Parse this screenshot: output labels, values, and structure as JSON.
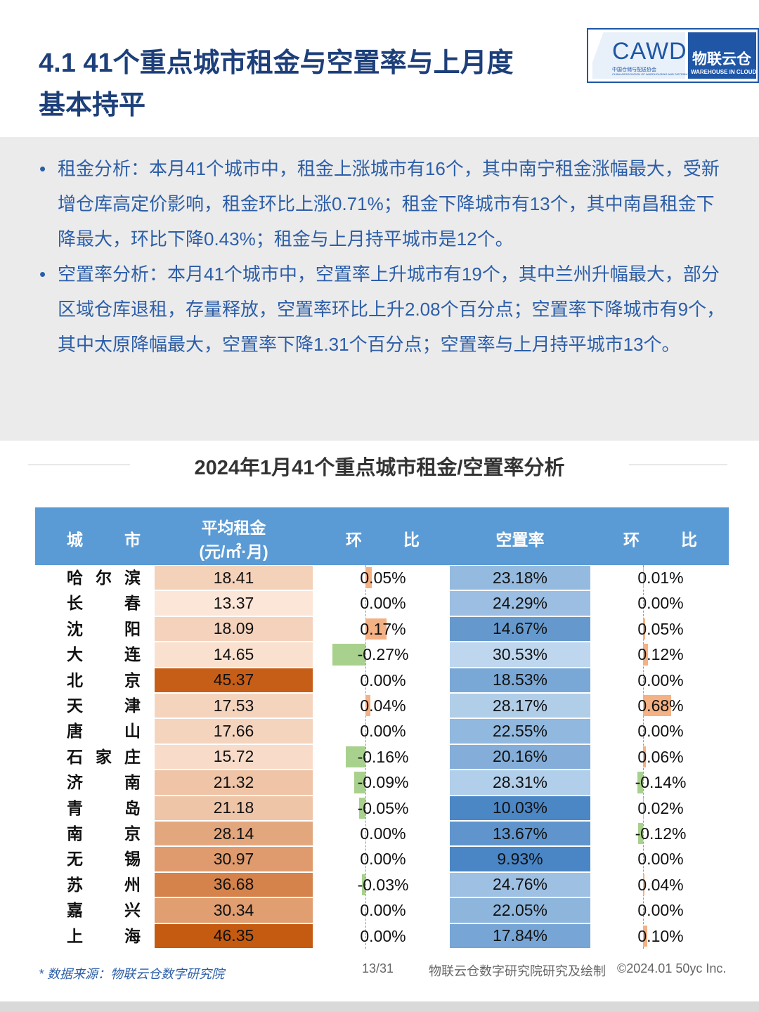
{
  "header": {
    "title_line1": "4.1 41个重点城市租金与空置率与上月度",
    "title_line2": "基本持平",
    "logo": {
      "cawd": "CAWD",
      "cawd_cn": "中国仓储与配送协会",
      "cawd_en": "CHINA ASSOCIATION OF WAREHOUSING AND DISTRIBUTION",
      "brand": "物联云仓",
      "brand_en": "WAREHOUSE IN CLOUD"
    }
  },
  "bullets": [
    "租金分析：本月41个城市中，租金上涨城市有16个，其中南宁租金涨幅最大，受新增仓库高定价影响，租金环比上涨0.71%；租金下降城市有13个，其中南昌租金下降最大，环比下降0.43%；租金与上月持平城市是12个。",
    "空置率分析：本月41个城市中，空置率上升城市有19个，其中兰州升幅最大，部分区域仓库退租，存量释放，空置率环比上升2.08个百分点；空置率下降城市有9个，其中太原降幅最大，空置率下降1.31个百分点；空置率与上月持平城市13个。"
  ],
  "table": {
    "title": "2024年1月41个重点城市租金/空置率分析",
    "columns": {
      "city": "城市",
      "rent_line1": "平均租金",
      "rent_line2": "(元/㎡·月)",
      "rent_change": "环比",
      "vacancy": "空置率",
      "vacancy_change": "环比"
    },
    "rows": [
      {
        "city": "哈尔滨",
        "rent": 18.41,
        "rent_change": {
          "value": 0.05,
          "label": "0.05%"
        },
        "vacancy": {
          "value": 23.18,
          "label": "23.18%"
        },
        "vacancy_change": {
          "value": 0.01,
          "label": "0.01%"
        }
      },
      {
        "city": "长春",
        "rent": 13.37,
        "rent_change": {
          "value": 0,
          "label": "0.00%"
        },
        "vacancy": {
          "value": 24.29,
          "label": "24.29%"
        },
        "vacancy_change": {
          "value": 0,
          "label": "0.00%"
        }
      },
      {
        "city": "沈阳",
        "rent": 18.09,
        "rent_change": {
          "value": 0.17,
          "label": "0.17%"
        },
        "vacancy": {
          "value": 14.67,
          "label": "14.67%"
        },
        "vacancy_change": {
          "value": 0.05,
          "label": "0.05%"
        }
      },
      {
        "city": "大连",
        "rent": 14.65,
        "rent_change": {
          "value": -0.27,
          "label": "-0.27%"
        },
        "vacancy": {
          "value": 30.53,
          "label": "30.53%"
        },
        "vacancy_change": {
          "value": 0.12,
          "label": "0.12%"
        }
      },
      {
        "city": "北京",
        "rent": 45.37,
        "rent_change": {
          "value": 0,
          "label": "0.00%"
        },
        "vacancy": {
          "value": 18.53,
          "label": "18.53%"
        },
        "vacancy_change": {
          "value": 0,
          "label": "0.00%"
        }
      },
      {
        "city": "天津",
        "rent": 17.53,
        "rent_change": {
          "value": 0.04,
          "label": "0.04%"
        },
        "vacancy": {
          "value": 28.17,
          "label": "28.17%"
        },
        "vacancy_change": {
          "value": 0.68,
          "label": "0.68%"
        }
      },
      {
        "city": "唐山",
        "rent": 17.66,
        "rent_change": {
          "value": 0,
          "label": "0.00%"
        },
        "vacancy": {
          "value": 22.55,
          "label": "22.55%"
        },
        "vacancy_change": {
          "value": 0,
          "label": "0.00%"
        }
      },
      {
        "city": "石家庄",
        "rent": 15.72,
        "rent_change": {
          "value": -0.16,
          "label": "-0.16%"
        },
        "vacancy": {
          "value": 20.16,
          "label": "20.16%"
        },
        "vacancy_change": {
          "value": 0.06,
          "label": "0.06%"
        }
      },
      {
        "city": "济南",
        "rent": 21.32,
        "rent_change": {
          "value": -0.09,
          "label": "-0.09%"
        },
        "vacancy": {
          "value": 28.31,
          "label": "28.31%"
        },
        "vacancy_change": {
          "value": -0.14,
          "label": "-0.14%"
        }
      },
      {
        "city": "青岛",
        "rent": 21.18,
        "rent_change": {
          "value": -0.05,
          "label": "-0.05%"
        },
        "vacancy": {
          "value": 10.03,
          "label": "10.03%"
        },
        "vacancy_change": {
          "value": 0.02,
          "label": "0.02%"
        }
      },
      {
        "city": "南京",
        "rent": 28.14,
        "rent_change": {
          "value": 0,
          "label": "0.00%"
        },
        "vacancy": {
          "value": 13.67,
          "label": "13.67%"
        },
        "vacancy_change": {
          "value": -0.12,
          "label": "-0.12%"
        }
      },
      {
        "city": "无锡",
        "rent": 30.97,
        "rent_change": {
          "value": 0,
          "label": "0.00%"
        },
        "vacancy": {
          "value": 9.93,
          "label": "9.93%"
        },
        "vacancy_change": {
          "value": 0,
          "label": "0.00%"
        }
      },
      {
        "city": "苏州",
        "rent": 36.68,
        "rent_change": {
          "value": -0.03,
          "label": "-0.03%"
        },
        "vacancy": {
          "value": 24.76,
          "label": "24.76%"
        },
        "vacancy_change": {
          "value": 0.04,
          "label": "0.04%"
        }
      },
      {
        "city": "嘉兴",
        "rent": 30.34,
        "rent_change": {
          "value": 0,
          "label": "0.00%"
        },
        "vacancy": {
          "value": 22.05,
          "label": "22.05%"
        },
        "vacancy_change": {
          "value": 0,
          "label": "0.00%"
        }
      },
      {
        "city": "上海",
        "rent": 46.35,
        "rent_change": {
          "value": 0,
          "label": "0.00%"
        },
        "vacancy": {
          "value": 17.84,
          "label": "17.84%"
        },
        "vacancy_change": {
          "value": 0.1,
          "label": "0.10%"
        }
      }
    ]
  },
  "footer": {
    "source": "* 数据来源：物联云仓数字研究院",
    "page": "13/31",
    "credit": "物联云仓数字研究院研究及绘制",
    "copyright": "©2024.01 50yc Inc."
  }
}
